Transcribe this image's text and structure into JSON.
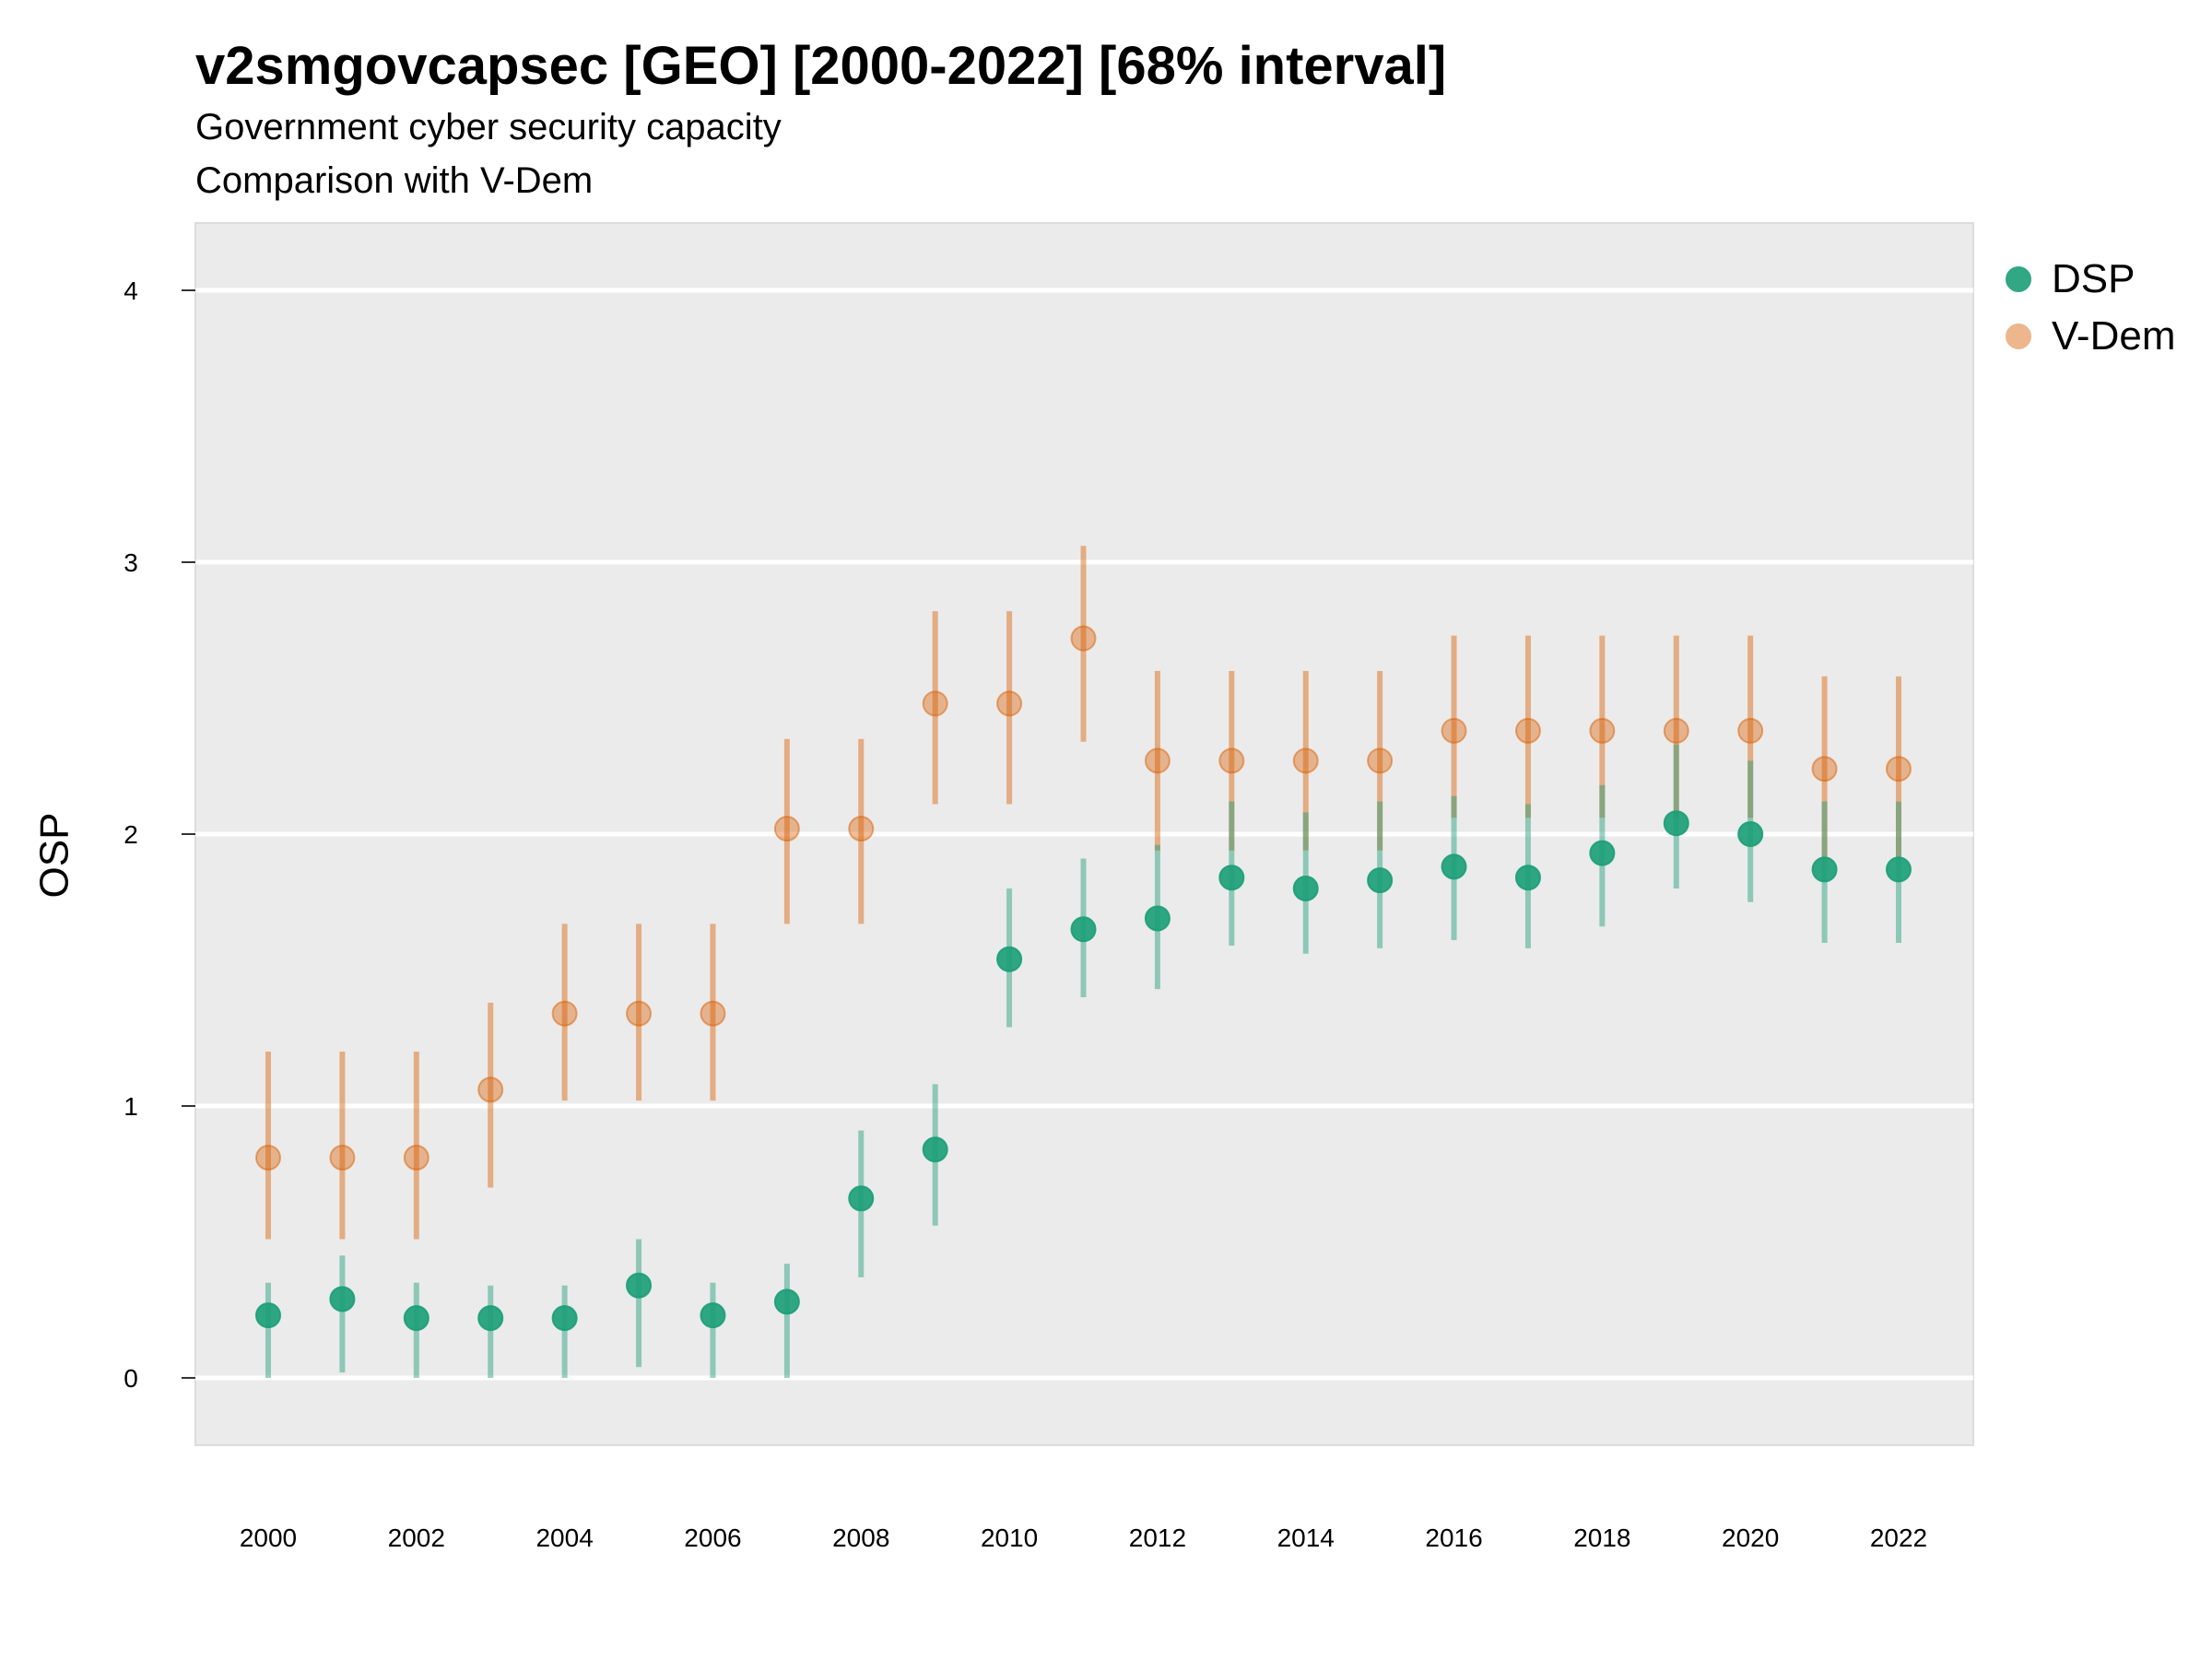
{
  "chart_data": {
    "type": "scatter",
    "title": "v2smgovcapsec [GEO] [2000-2022] [68% interval]",
    "subtitle": "Government cyber security capacity",
    "caption": "Comparison with V-Dem",
    "xlabel": "",
    "ylabel": "OSP",
    "xlim": [
      1999,
      2023
    ],
    "ylim": [
      -0.25,
      4.25
    ],
    "x_ticks": [
      2000,
      2002,
      2004,
      2006,
      2008,
      2010,
      2012,
      2014,
      2016,
      2018,
      2020,
      2022
    ],
    "y_ticks": [
      0,
      1,
      2,
      3,
      4
    ],
    "grid": true,
    "legend_position": "right",
    "x": [
      2000,
      2001,
      2002,
      2003,
      2004,
      2005,
      2006,
      2007,
      2008,
      2009,
      2010,
      2011,
      2012,
      2013,
      2014,
      2015,
      2016,
      2017,
      2018,
      2019,
      2020,
      2021,
      2022
    ],
    "series": [
      {
        "name": "DSP",
        "color": "#1b9e77",
        "values": [
          0.23,
          0.29,
          0.22,
          0.22,
          0.22,
          0.34,
          0.23,
          0.28,
          0.66,
          0.84,
          1.54,
          1.65,
          1.69,
          1.84,
          1.8,
          1.83,
          1.88,
          1.84,
          1.93,
          2.04,
          2.0,
          1.87,
          1.87
        ],
        "lower": [
          0.0,
          0.02,
          0.0,
          0.0,
          0.0,
          0.04,
          0.0,
          0.0,
          0.37,
          0.56,
          1.29,
          1.4,
          1.43,
          1.59,
          1.56,
          1.58,
          1.61,
          1.58,
          1.66,
          1.8,
          1.75,
          1.6,
          1.6
        ],
        "upper": [
          0.35,
          0.45,
          0.35,
          0.34,
          0.34,
          0.51,
          0.35,
          0.42,
          0.91,
          1.08,
          1.8,
          1.91,
          1.96,
          2.12,
          2.08,
          2.12,
          2.14,
          2.11,
          2.18,
          2.33,
          2.27,
          2.12,
          2.12
        ]
      },
      {
        "name": "V-Dem",
        "color": "#d95f02",
        "values": [
          0.81,
          0.81,
          0.81,
          1.06,
          1.34,
          1.34,
          1.34,
          2.02,
          2.02,
          2.48,
          2.48,
          2.72,
          2.27,
          2.27,
          2.27,
          2.27,
          2.38,
          2.38,
          2.38,
          2.38,
          2.38,
          2.24,
          2.24
        ],
        "lower": [
          0.51,
          0.51,
          0.51,
          0.7,
          1.02,
          1.02,
          1.02,
          1.67,
          1.67,
          2.11,
          2.11,
          2.34,
          1.94,
          1.94,
          1.94,
          1.94,
          2.06,
          2.06,
          2.06,
          2.06,
          2.06,
          1.91,
          1.91
        ],
        "upper": [
          1.2,
          1.2,
          1.2,
          1.38,
          1.67,
          1.67,
          1.67,
          2.35,
          2.35,
          2.82,
          2.82,
          3.06,
          2.6,
          2.6,
          2.6,
          2.6,
          2.73,
          2.73,
          2.73,
          2.73,
          2.73,
          2.58,
          2.58
        ]
      }
    ]
  }
}
